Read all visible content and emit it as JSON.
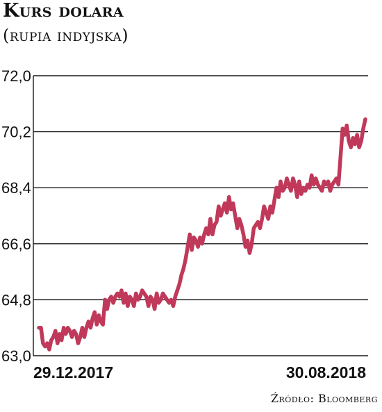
{
  "header": {
    "title": "Kurs dolara",
    "subtitle": "(rupia indyjska)"
  },
  "footer": {
    "source": "Źródło: Bloomberg"
  },
  "colors": {
    "line": "#c0395a",
    "grid": "#1a1a1a",
    "text": "#111111"
  },
  "chart_data": {
    "type": "line",
    "title": "Kurs dolara",
    "subtitle": "(rupia indyjska)",
    "ylim": [
      63.0,
      72.0
    ],
    "yticks": [
      "72,0",
      "70,2",
      "68,4",
      "66,6",
      "64,8",
      "63,0"
    ],
    "ytick_values": [
      72.0,
      70.2,
      68.4,
      66.6,
      64.8,
      63.0
    ],
    "x_start_label": "29.12.2017",
    "x_end_label": "30.08.2018",
    "grid": true,
    "series": [
      {
        "values": [
          63.9,
          63.9,
          63.4,
          63.3,
          63.4,
          63.2,
          63.5,
          63.6,
          63.8,
          63.4,
          63.7,
          63.5,
          63.9,
          63.7,
          63.9,
          63.8,
          63.6,
          63.8,
          63.7,
          63.4,
          63.6,
          63.9,
          63.6,
          63.9,
          64.1,
          63.9,
          64.2,
          64.4,
          64.0,
          64.3,
          64.1,
          64.0,
          64.8,
          64.5,
          64.8,
          64.9,
          64.7,
          64.9,
          65.0,
          64.9,
          65.1,
          64.7,
          65.0,
          64.6,
          64.9,
          64.8,
          64.6,
          65.0,
          64.8,
          64.9,
          65.1,
          65.0,
          64.9,
          64.6,
          64.9,
          64.8,
          64.5,
          65.0,
          64.7,
          64.8,
          65.0,
          64.9,
          64.8,
          64.7,
          64.8,
          64.6,
          64.9,
          65.1,
          65.3,
          65.6,
          65.8,
          66.1,
          66.5,
          66.9,
          66.4,
          66.8,
          66.7,
          66.5,
          66.8,
          66.6,
          66.9,
          67.1,
          66.9,
          67.4,
          66.9,
          67.2,
          67.3,
          67.8,
          67.5,
          67.7,
          67.9,
          67.6,
          68.1,
          67.7,
          67.9,
          67.5,
          67.1,
          67.4,
          67.2,
          66.9,
          66.5,
          66.7,
          66.3,
          66.6,
          67.1,
          67.2,
          67.3,
          67.1,
          67.4,
          67.8,
          67.6,
          67.4,
          67.8,
          67.6,
          68.0,
          68.4,
          68.1,
          68.6,
          68.3,
          68.4,
          68.7,
          68.5,
          68.3,
          68.7,
          68.5,
          68.1,
          68.6,
          68.2,
          68.4,
          68.3,
          68.5,
          68.4,
          68.8,
          68.5,
          68.7,
          68.5,
          68.4,
          68.3,
          68.6,
          68.5,
          68.6,
          68.3,
          68.5,
          68.6,
          68.7,
          68.5,
          69.4,
          70.3,
          70.1,
          70.4,
          69.9,
          69.7,
          70.0,
          69.8,
          70.1,
          69.7,
          69.9,
          70.3,
          70.6
        ]
      }
    ]
  }
}
